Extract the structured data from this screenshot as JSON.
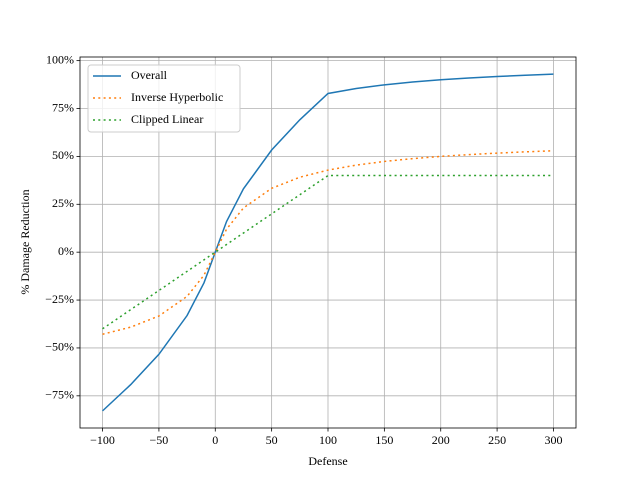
{
  "chart_data": {
    "type": "line",
    "x_label": "Defense",
    "y_label": "% Damage Reduction",
    "x": [
      -100,
      -75,
      -50,
      -25,
      -10,
      0,
      10,
      25,
      50,
      75,
      100,
      125,
      150,
      175,
      200,
      225,
      250,
      275,
      300
    ],
    "series": [
      {
        "name": "Overall",
        "color": "#1f77b4",
        "dash": "solid",
        "values": [
          -82.86,
          -69.13,
          -53.33,
          -33.08,
          -16,
          0,
          16,
          33.08,
          53.33,
          69.13,
          82.86,
          85.45,
          87.37,
          88.84,
          90,
          90.94,
          91.72,
          92.38,
          92.94
        ]
      },
      {
        "name": "Inverse Hyperbolic",
        "color": "#ff7f0e",
        "dash": "dotted",
        "values": [
          -42.86,
          -39.13,
          -33.33,
          -23.08,
          -12,
          0,
          12,
          23.08,
          33.33,
          39.13,
          42.86,
          45.45,
          47.37,
          48.84,
          50,
          50.94,
          51.72,
          52.38,
          52.94
        ]
      },
      {
        "name": "Clipped Linear",
        "color": "#2ca02c",
        "dash": "dotted",
        "values": [
          -40,
          -30,
          -20,
          -10,
          -4,
          0,
          4,
          10,
          20,
          30,
          40,
          40,
          40,
          40,
          40,
          40,
          40,
          40,
          40
        ]
      }
    ],
    "xlim": [
      -120,
      320
    ],
    "ylim": [
      -91.8,
      101.9
    ],
    "xticks": [
      {
        "value": -100,
        "label": "−100"
      },
      {
        "value": -50,
        "label": "−50"
      },
      0,
      50,
      100,
      150,
      200,
      250,
      300
    ],
    "yticks": [
      {
        "value": -75,
        "label": "−75%"
      },
      {
        "value": -50,
        "label": "−50%"
      },
      {
        "value": -25,
        "label": "−25%"
      },
      {
        "value": 0,
        "label": "0%"
      },
      {
        "value": 25,
        "label": "25%"
      },
      {
        "value": 50,
        "label": "50%"
      },
      {
        "value": 75,
        "label": "75%"
      },
      {
        "value": 100,
        "label": "100%"
      }
    ],
    "grid": true,
    "legend": "upper-left"
  }
}
